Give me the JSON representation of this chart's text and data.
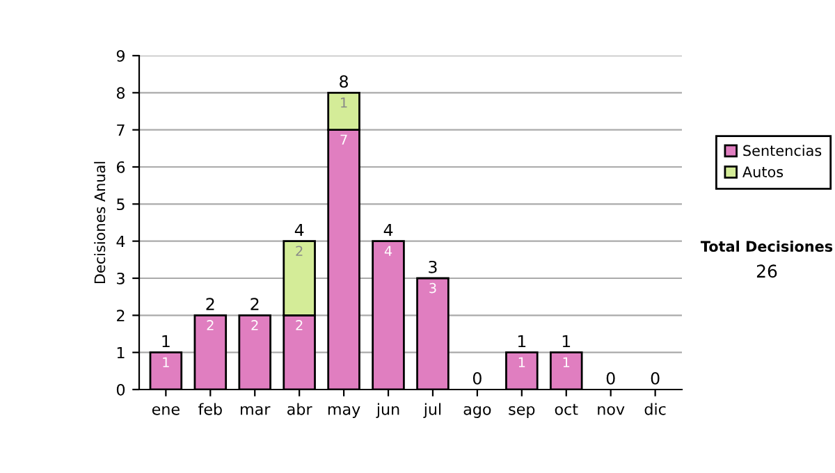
{
  "chart_data": {
    "type": "bar",
    "stacked": true,
    "ylabel": "Decisiones Anual",
    "categories": [
      "ene",
      "feb",
      "mar",
      "abr",
      "may",
      "jun",
      "jul",
      "ago",
      "sep",
      "oct",
      "nov",
      "dic"
    ],
    "series": [
      {
        "name": "Sentencias",
        "color": "#e07ec0",
        "values": [
          1,
          2,
          2,
          2,
          7,
          4,
          3,
          0,
          1,
          1,
          0,
          0
        ],
        "value_labels": [
          "1",
          "2",
          "2",
          "2",
          "7",
          "4",
          "3",
          null,
          "1",
          "1",
          null,
          null
        ]
      },
      {
        "name": "Autos",
        "color": "#d4ec98",
        "values": [
          0,
          0,
          0,
          2,
          1,
          0,
          0,
          0,
          0,
          0,
          0,
          0
        ],
        "value_labels": [
          null,
          null,
          null,
          "2",
          "1",
          null,
          null,
          null,
          null,
          null,
          null,
          null
        ]
      }
    ],
    "totals": [
      "1",
      "2",
      "2",
      "4",
      "8",
      "4",
      "3",
      "0",
      "1",
      "1",
      "0",
      "0"
    ],
    "ylim": [
      0,
      9
    ],
    "yticks": [
      0,
      1,
      2,
      3,
      4,
      5,
      6,
      7,
      8,
      9
    ],
    "grid": "y",
    "legend": "right",
    "annotations": [
      "Total Decisiones",
      "26"
    ]
  }
}
